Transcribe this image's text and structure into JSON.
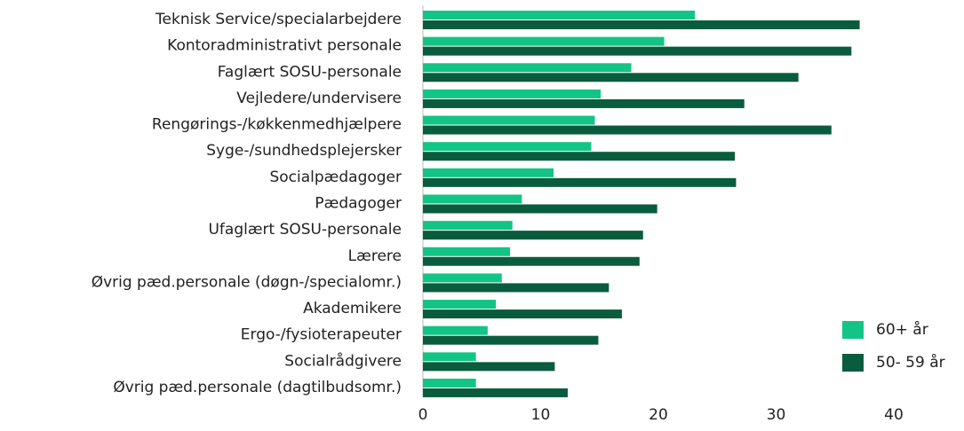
{
  "chart_data": {
    "type": "barh",
    "categories": [
      "Teknisk Service/specialarbejdere",
      "Kontoradministrativt personale",
      "Faglært SOSU-personale",
      "Vejledere/undervisere",
      "Rengørings-/køkkenmedhjælpere",
      "Syge-/sundhedsplejersker",
      "Socialpædagoger",
      "Pædagoger",
      "Ufaglært SOSU-personale",
      "Lærere",
      "Øvrig pæd.personale (døgn-/specialomr.)",
      "Akademikere",
      "Ergo-/fysioterapeuter",
      "Socialrådgivere",
      "Øvrig pæd.personale (dagtilbudsomr.)"
    ],
    "series": [
      {
        "name": "60+ år",
        "color": "#13c487",
        "values": [
          23.1,
          20.5,
          17.7,
          15.1,
          14.6,
          14.3,
          11.1,
          8.4,
          7.6,
          7.4,
          6.7,
          6.2,
          5.5,
          4.5,
          4.5
        ]
      },
      {
        "name": "50- 59 år",
        "color": "#0a5c3e",
        "values": [
          37.1,
          36.4,
          31.9,
          27.3,
          34.7,
          26.5,
          26.6,
          19.9,
          18.7,
          18.4,
          15.8,
          16.9,
          14.9,
          11.2,
          12.3
        ]
      }
    ],
    "xlim": [
      0,
      40
    ],
    "xticks": [
      0,
      10,
      20,
      30,
      40
    ],
    "grid": false,
    "legend": "lower right"
  }
}
